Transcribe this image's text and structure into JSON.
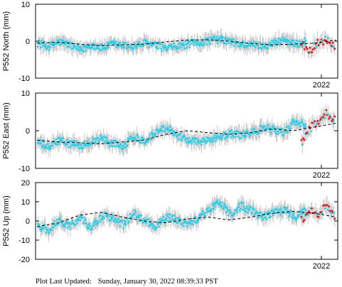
{
  "footer": {
    "label": "Plot Last Updated:",
    "timestamp": "Sunday, January 30, 2022 08:39:33 PST"
  },
  "colors": {
    "point": "#22d3ee",
    "recent_point": "#e41a1c",
    "error_bar": "#c8c8c8",
    "model": "#000000",
    "frame": "#000000"
  },
  "chart_data": [
    {
      "type": "scatter",
      "ylabel": "P552 North (mm)",
      "ylim": [
        -10,
        10
      ],
      "yticks": [
        -10,
        0,
        10
      ],
      "xtick_label": "2022",
      "series": [
        {
          "values": [
            -0.5,
            -1.5,
            -0.2,
            -1.0,
            -2.5,
            -1.0,
            -1.8,
            -0.8,
            -1.2,
            -1.5,
            -0.5,
            -1.2,
            -2.0,
            -1.5,
            -0.8,
            -0.5,
            0.2,
            0.5,
            -0.2,
            -0.8,
            -1.0,
            -1.2,
            -0.5,
            0.5,
            -1.0,
            0.2
          ]
        },
        {
          "values": [
            -1.0,
            -2.5,
            -0.5,
            0.5,
            -1.8
          ]
        },
        {
          "values": [
            -0.5,
            -0.3,
            -0.8,
            -1.2,
            -1.0,
            -0.8,
            -0.2,
            0.3,
            0.4,
            0.0,
            -0.6,
            -1.0,
            -0.8,
            -0.5,
            0.3
          ]
        }
      ]
    },
    {
      "type": "scatter",
      "ylabel": "P552 East (mm)",
      "ylim": [
        -10,
        10
      ],
      "yticks": [
        -10,
        0,
        10
      ],
      "xtick_label": "2022",
      "series": [
        {
          "values": [
            -3.0,
            -4.5,
            -2.5,
            -3.5,
            -4.0,
            -3.0,
            -2.0,
            -3.5,
            -4.0,
            -1.5,
            -2.8,
            -0.5,
            1.0,
            -1.0,
            -2.5,
            -3.0,
            -2.2,
            -1.5,
            -0.8,
            -1.2,
            -0.5,
            0.8,
            0.2,
            -0.5,
            2.5,
            1.5
          ]
        },
        {
          "values": [
            -3.0,
            0.5,
            2.5,
            4.5,
            3.0
          ]
        },
        {
          "values": [
            -2.5,
            -3.0,
            -3.2,
            -3.5,
            -3.0,
            -2.5,
            -1.0,
            0.0,
            -0.5,
            -1.0,
            -0.5,
            0.5,
            0.0,
            1.0,
            2.0
          ]
        }
      ]
    },
    {
      "type": "scatter",
      "ylabel": "P552 Up (mm)",
      "ylim": [
        -20,
        20
      ],
      "yticks": [
        -20,
        -10,
        0,
        10,
        20
      ],
      "xtick_label": "2022",
      "series": [
        {
          "values": [
            -2.0,
            -5.0,
            0.5,
            -3.0,
            2.0,
            -4.0,
            3.0,
            1.0,
            -2.0,
            4.0,
            0.0,
            -3.0,
            2.0,
            0.5,
            -2.0,
            1.5,
            6.0,
            10.0,
            3.0,
            8.0,
            5.0,
            2.0,
            4.0,
            6.0,
            2.0,
            5.0
          ]
        },
        {
          "values": [
            0.0,
            5.0,
            3.5,
            8.0,
            2.0
          ]
        },
        {
          "values": [
            -3.0,
            -1.0,
            3.0,
            4.5,
            2.0,
            0.0,
            -1.0,
            1.0,
            2.0,
            0.5,
            2.0,
            4.0,
            5.0,
            4.0,
            2.0
          ]
        }
      ]
    }
  ]
}
